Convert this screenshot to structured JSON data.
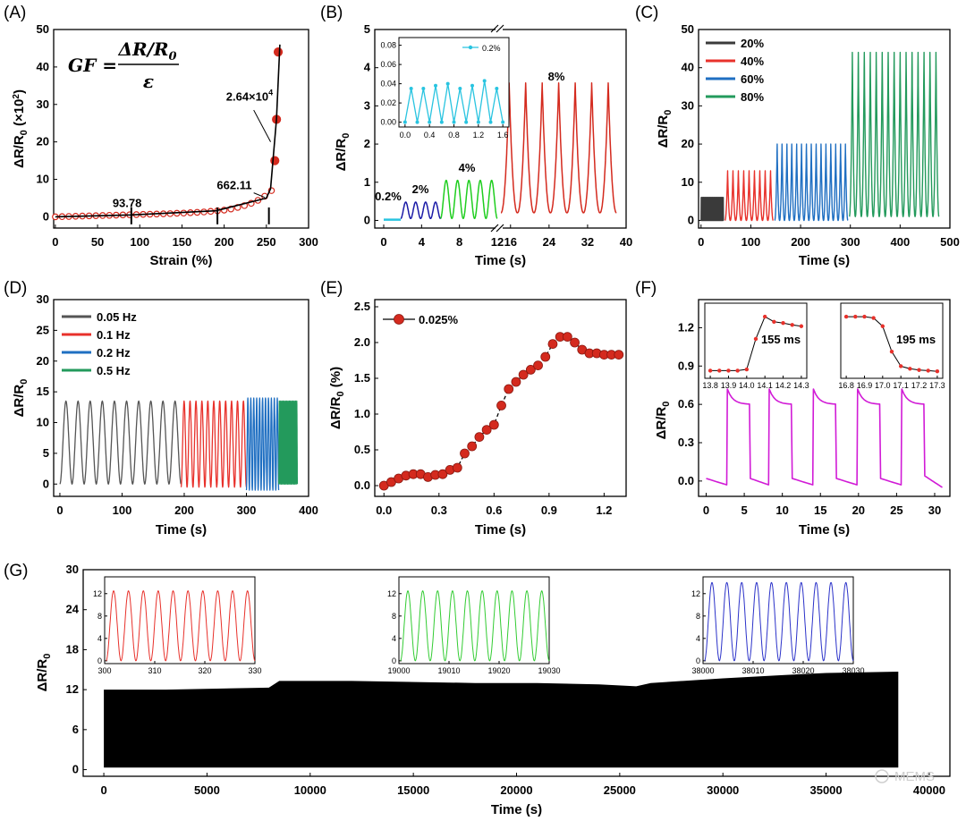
{
  "watermark": "MEMS",
  "gf_formula": {
    "lhs": "GF =",
    "numerator": "ΔR/R",
    "numerator_sub": "0",
    "denominator": "ε"
  },
  "chart_data": [
    {
      "panel": "(A)",
      "type": "scatter",
      "xlabel": "Strain (%)",
      "ylabel": "ΔR/R",
      "ylabel_sub": "0",
      "ylabel_suffix": " (×10",
      "ylabel_sup": "2",
      "ylabel_end": ")",
      "xlim": [
        -2,
        300
      ],
      "ylim": [
        -3,
        50
      ],
      "xticks": [
        "0",
        "50",
        "100",
        "150",
        "200",
        "250",
        "300"
      ],
      "xtick_values": [
        0,
        50,
        100,
        150,
        200,
        250,
        300
      ],
      "yticks": [
        "0",
        "10",
        "20",
        "30",
        "40",
        "50"
      ],
      "ytick_values": [
        0,
        10,
        20,
        30,
        40,
        50
      ],
      "series": [
        {
          "name": "data",
          "color": "#d42a1e",
          "x": [
            0,
            8,
            16,
            24,
            32,
            40,
            48,
            56,
            64,
            72,
            80,
            88,
            96,
            104,
            112,
            120,
            128,
            136,
            144,
            152,
            160,
            168,
            176,
            184,
            192,
            200,
            208,
            216,
            224,
            232,
            240,
            248,
            256,
            260,
            262,
            264
          ],
          "y": [
            0.0,
            0.05,
            0.1,
            0.15,
            0.2,
            0.25,
            0.3,
            0.35,
            0.4,
            0.45,
            0.5,
            0.55,
            0.6,
            0.65,
            0.7,
            0.75,
            0.8,
            0.85,
            0.95,
            1.0,
            1.1,
            1.2,
            1.3,
            1.45,
            1.6,
            1.8,
            2.1,
            2.5,
            3.0,
            3.6,
            4.4,
            5.5,
            7.0,
            15.0,
            26.0,
            44.0
          ]
        }
      ],
      "fit_x": [
        0,
        90,
        190,
        250,
        255,
        262,
        266
      ],
      "fit_y": [
        0,
        0.5,
        1.6,
        5.0,
        7.5,
        26,
        46
      ],
      "annotations": [
        {
          "text": "93.78",
          "x": 85,
          "y": 2.6
        },
        {
          "text": "662.11",
          "x": 212,
          "y": 7.4
        },
        {
          "text": "2.64×10",
          "sup": "4",
          "x": 230,
          "y": 31
        }
      ],
      "breakpoints_x": [
        90,
        192,
        253
      ]
    },
    {
      "panel": "(B)",
      "type": "line",
      "xlabel": "Time (s)",
      "ylabel": "ΔR/R",
      "ylabel_sub": "0",
      "ylim": [
        -0.2,
        5
      ],
      "xticks": [
        "0",
        "4",
        "8",
        "12",
        "16",
        "24",
        "32",
        "40"
      ],
      "yticks": [
        "0",
        "1",
        "2",
        "3",
        "4",
        "5"
      ],
      "ytick_values": [
        0,
        1,
        2,
        3,
        4,
        5
      ],
      "segments": [
        {
          "label": "0.2%",
          "color": "#29c4e0",
          "amplitude": 0.04
        },
        {
          "label": "2%",
          "color": "#1a1aa6",
          "amplitude": 0.48
        },
        {
          "label": "4%",
          "color": "#1fce1f",
          "amplitude": 1.05
        },
        {
          "label": "8%",
          "color": "#d42a1e",
          "amplitude": 3.6
        }
      ],
      "inset": {
        "legend": "0.2%",
        "color": "#29c4e0",
        "xticks": [
          "0.0",
          "0.4",
          "0.8",
          "1.2",
          "1.6"
        ],
        "xtick_values": [
          0,
          0.4,
          0.8,
          1.2,
          1.6
        ],
        "yticks": [
          "0.00",
          "0.02",
          "0.04",
          "0.06",
          "0.08"
        ],
        "ytick_values": [
          0,
          0.02,
          0.04,
          0.06,
          0.08
        ],
        "xlim": [
          -0.1,
          1.7
        ],
        "ylim": [
          -0.005,
          0.088
        ],
        "x": [
          0,
          0.1,
          0.2,
          0.3,
          0.4,
          0.5,
          0.6,
          0.7,
          0.8,
          0.9,
          1.0,
          1.1,
          1.2,
          1.3,
          1.4,
          1.5,
          1.6
        ],
        "y": [
          0.0,
          0.035,
          0.0,
          0.035,
          0.0,
          0.038,
          0.0,
          0.04,
          0.0,
          0.035,
          0.0,
          0.038,
          0.0,
          0.043,
          0.0,
          0.035,
          0.0
        ]
      }
    },
    {
      "panel": "(C)",
      "type": "line",
      "xlabel": "Time (s)",
      "ylabel": "ΔR/R",
      "ylabel_sub": "0",
      "xlim": [
        -5,
        500
      ],
      "ylim": [
        -2,
        50
      ],
      "xticks": [
        "0",
        "100",
        "200",
        "300",
        "400",
        "500"
      ],
      "xtick_values": [
        0,
        100,
        200,
        300,
        400,
        500
      ],
      "yticks": [
        "0",
        "10",
        "20",
        "30",
        "40",
        "50"
      ],
      "ytick_values": [
        0,
        10,
        20,
        30,
        40,
        50
      ],
      "series": [
        {
          "name": "20%",
          "color": "#3a3a3a",
          "t_start": 0,
          "t_end": 45,
          "min": 0,
          "max": 6,
          "cycles": 1
        },
        {
          "name": "40%",
          "color": "#e8312b",
          "t_start": 48,
          "t_end": 145,
          "min": 0,
          "max": 13,
          "cycles": 9
        },
        {
          "name": "60%",
          "color": "#1f6fc2",
          "t_start": 148,
          "t_end": 295,
          "min": 0,
          "max": 20,
          "cycles": 15
        },
        {
          "name": "80%",
          "color": "#239a5c",
          "t_start": 298,
          "t_end": 478,
          "min": 1,
          "max": 44,
          "cycles": 15
        }
      ]
    },
    {
      "panel": "(D)",
      "type": "line",
      "xlabel": "Time (s)",
      "ylabel": "ΔR/R",
      "ylabel_sub": "0",
      "xlim": [
        -10,
        400
      ],
      "ylim": [
        -2,
        30
      ],
      "xticks": [
        "0",
        "100",
        "200",
        "300",
        "400"
      ],
      "xtick_values": [
        0,
        100,
        200,
        300,
        400
      ],
      "yticks": [
        "0",
        "5",
        "10",
        "15",
        "20",
        "25",
        "30"
      ],
      "ytick_values": [
        0,
        5,
        10,
        15,
        20,
        25,
        30
      ],
      "series": [
        {
          "name": "0.05 Hz",
          "color": "#555555",
          "t_start": 0,
          "t_end": 195,
          "min": 0,
          "max": 13.5,
          "cycles": 10
        },
        {
          "name": "0.1 Hz",
          "color": "#e8312b",
          "t_start": 195,
          "t_end": 300,
          "min": -0.5,
          "max": 13.5,
          "cycles": 11
        },
        {
          "name": "0.2 Hz",
          "color": "#1f6fc2",
          "t_start": 300,
          "t_end": 352,
          "min": -1,
          "max": 14,
          "cycles": 11
        },
        {
          "name": "0.5 Hz",
          "color": "#239a5c",
          "t_start": 352,
          "t_end": 382,
          "min": 0,
          "max": 13.5,
          "cycles": 15
        }
      ]
    },
    {
      "panel": "(E)",
      "type": "scatter",
      "xlabel": "Time (s)",
      "ylabel": "ΔR/R",
      "ylabel_sub": "0",
      "ylabel_suffix": " (%)",
      "legend": "0.025%",
      "color": "#d42a1e",
      "xlim": [
        -0.05,
        1.32
      ],
      "ylim": [
        -0.15,
        2.6
      ],
      "xticks": [
        "0.0",
        "0.3",
        "0.6",
        "0.9",
        "1.2"
      ],
      "xtick_values": [
        0,
        0.3,
        0.6,
        0.9,
        1.2
      ],
      "yticks": [
        "0.0",
        "0.5",
        "1.0",
        "1.5",
        "2.0",
        "2.5"
      ],
      "ytick_values": [
        0,
        0.5,
        1.0,
        1.5,
        2.0,
        2.5
      ],
      "x": [
        0.0,
        0.04,
        0.08,
        0.12,
        0.16,
        0.2,
        0.24,
        0.28,
        0.32,
        0.36,
        0.4,
        0.44,
        0.48,
        0.52,
        0.56,
        0.6,
        0.64,
        0.68,
        0.72,
        0.76,
        0.8,
        0.84,
        0.88,
        0.92,
        0.96,
        1.0,
        1.04,
        1.08,
        1.12,
        1.16,
        1.2,
        1.24,
        1.28
      ],
      "y": [
        0.0,
        0.05,
        0.1,
        0.14,
        0.16,
        0.16,
        0.12,
        0.15,
        0.16,
        0.22,
        0.25,
        0.45,
        0.55,
        0.68,
        0.78,
        0.85,
        1.12,
        1.35,
        1.45,
        1.55,
        1.62,
        1.68,
        1.8,
        1.98,
        2.08,
        2.08,
        2.0,
        1.9,
        1.85,
        1.85,
        1.83,
        1.83,
        1.83
      ]
    },
    {
      "panel": "(F)",
      "type": "line",
      "xlabel": "Time (s)",
      "ylabel": "ΔR/R",
      "ylabel_sub": "0",
      "color": "#d11bd6",
      "xlim": [
        -1,
        32
      ],
      "ylim": [
        -0.12,
        1.42
      ],
      "xticks": [
        "0",
        "5",
        "10",
        "15",
        "20",
        "25",
        "30"
      ],
      "xtick_values": [
        0,
        5,
        10,
        15,
        20,
        25,
        30
      ],
      "yticks": [
        "0.0",
        "0.3",
        "0.6",
        "0.9",
        "1.2"
      ],
      "ytick_values": [
        0,
        0.3,
        0.6,
        0.9,
        1.2
      ],
      "pulses_start": [
        2.7,
        8.2,
        14.0,
        19.8,
        25.6
      ],
      "pulse_width": 3.0,
      "high": 0.72,
      "plateau": 0.6,
      "low": 0.0,
      "insets": [
        {
          "label": "155 ms",
          "xticks": [
            "13.8",
            "13.9",
            "14.0",
            "14.1",
            "14.2",
            "14.3"
          ],
          "xtick_values": [
            13.8,
            13.9,
            14.0,
            14.1,
            14.2,
            14.3
          ],
          "xlim": [
            13.77,
            14.33
          ],
          "x": [
            13.8,
            13.85,
            13.9,
            13.95,
            14.0,
            14.05,
            14.1,
            14.15,
            14.2,
            14.25,
            14.3
          ],
          "y": [
            0.05,
            0.05,
            0.05,
            0.05,
            0.07,
            0.55,
            0.9,
            0.82,
            0.8,
            0.77,
            0.75
          ]
        },
        {
          "label": "195 ms",
          "xticks": [
            "16.8",
            "16.9",
            "17.0",
            "17.1",
            "17.2",
            "17.3"
          ],
          "xtick_values": [
            16.8,
            16.9,
            17.0,
            17.1,
            17.2,
            17.3
          ],
          "xlim": [
            16.77,
            17.33
          ],
          "x": [
            16.8,
            16.85,
            16.9,
            16.95,
            17.0,
            17.05,
            17.1,
            17.15,
            17.2,
            17.25,
            17.3
          ],
          "y": [
            0.9,
            0.9,
            0.9,
            0.88,
            0.75,
            0.35,
            0.12,
            0.08,
            0.06,
            0.05,
            0.04
          ]
        }
      ]
    },
    {
      "panel": "(G)",
      "type": "area",
      "xlabel": "Time (s)",
      "ylabel": "ΔR/R",
      "ylabel_sub": "0",
      "color": "#000000",
      "xlim": [
        -1000,
        41000
      ],
      "ylim": [
        -1,
        30
      ],
      "xticks": [
        "0",
        "5000",
        "10000",
        "15000",
        "20000",
        "25000",
        "30000",
        "35000",
        "40000"
      ],
      "xtick_values": [
        0,
        5000,
        10000,
        15000,
        20000,
        25000,
        30000,
        35000,
        40000
      ],
      "yticks": [
        "0",
        "6",
        "12",
        "18",
        "24",
        "30"
      ],
      "ytick_values": [
        0,
        6,
        12,
        18,
        24,
        30
      ],
      "envelope_x": [
        0,
        3000,
        8000,
        8500,
        12000,
        18000,
        21000,
        24000,
        25800,
        26500,
        30000,
        33000,
        35000,
        38500
      ],
      "envelope_top": [
        12,
        12,
        12.3,
        13.3,
        13.3,
        13,
        13,
        12.8,
        12.5,
        13,
        13.7,
        14.2,
        14.5,
        14.7
      ],
      "insets": [
        {
          "xticks": [
            "300",
            "310",
            "320",
            "330"
          ],
          "xtick_values": [
            300,
            310,
            320,
            330
          ],
          "xlim": [
            300,
            330
          ],
          "color": "#e8312b",
          "cycles": 10
        },
        {
          "xticks": [
            "19000",
            "19010",
            "19020",
            "19030"
          ],
          "xtick_values": [
            19000,
            19010,
            19020,
            19030
          ],
          "xlim": [
            19000,
            19030
          ],
          "color": "#33cc33",
          "cycles": 10
        },
        {
          "xticks": [
            "38000",
            "38010",
            "38020",
            "38030"
          ],
          "xtick_values": [
            38000,
            38010,
            38020,
            38030
          ],
          "xlim": [
            38000,
            38030
          ],
          "color": "#2b32c9",
          "cycles": 10
        }
      ],
      "inset_yticks": [
        "0",
        "4",
        "8",
        "12"
      ],
      "inset_ytick_values": [
        0,
        4,
        8,
        12
      ],
      "inset_ylim": [
        -0.5,
        15
      ]
    }
  ]
}
